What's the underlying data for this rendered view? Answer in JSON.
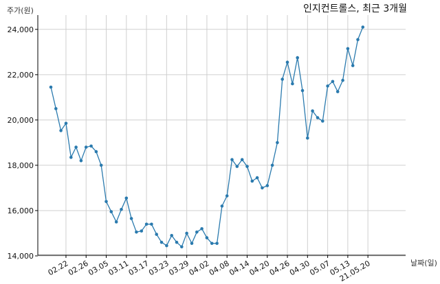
{
  "chart_data": {
    "type": "line",
    "title": "인지컨트롤스, 최근 3개월",
    "xlabel": "날짜(일)",
    "ylabel": "주가(원)",
    "ylim": [
      14000,
      24600
    ],
    "yticks": [
      14000,
      16000,
      18000,
      20000,
      22000,
      24000
    ],
    "ytick_labels": [
      "14,000",
      "16,000",
      "18,000",
      "20,000",
      "22,000",
      "24,000"
    ],
    "xticks": [
      {
        "index": 3,
        "label": "02.22"
      },
      {
        "index": 7,
        "label": "02.26"
      },
      {
        "index": 11,
        "label": "03.05"
      },
      {
        "index": 15,
        "label": "03.11"
      },
      {
        "index": 19,
        "label": "03.17"
      },
      {
        "index": 23,
        "label": "03.23"
      },
      {
        "index": 27,
        "label": "03.29"
      },
      {
        "index": 31,
        "label": "04.02"
      },
      {
        "index": 35,
        "label": "04.08"
      },
      {
        "index": 39,
        "label": "04.14"
      },
      {
        "index": 43,
        "label": "04.20"
      },
      {
        "index": 47,
        "label": "04.26"
      },
      {
        "index": 51,
        "label": "04.30"
      },
      {
        "index": 55,
        "label": "05.07"
      },
      {
        "index": 59,
        "label": "05.13"
      },
      {
        "index": 63,
        "label": "21.05.20"
      }
    ],
    "grid": true,
    "series": [
      {
        "color": "#2a7aae",
        "values": [
          21450,
          20500,
          19530,
          19850,
          18350,
          18800,
          18200,
          18800,
          18850,
          18600,
          18000,
          16400,
          15950,
          15500,
          16050,
          16550,
          15650,
          15050,
          15100,
          15400,
          15400,
          14950,
          14600,
          14450,
          14900,
          14600,
          14400,
          15000,
          14550,
          15050,
          15200,
          14800,
          14550,
          14550,
          16200,
          16650,
          18250,
          17950,
          18250,
          17950,
          17300,
          17450,
          17000,
          17100,
          18000,
          19000,
          21800,
          22550,
          21600,
          22750,
          21300,
          19200,
          20400,
          20100,
          19950,
          21500,
          21700,
          21250,
          21750,
          23150,
          22400,
          23550,
          24100
        ]
      }
    ]
  }
}
